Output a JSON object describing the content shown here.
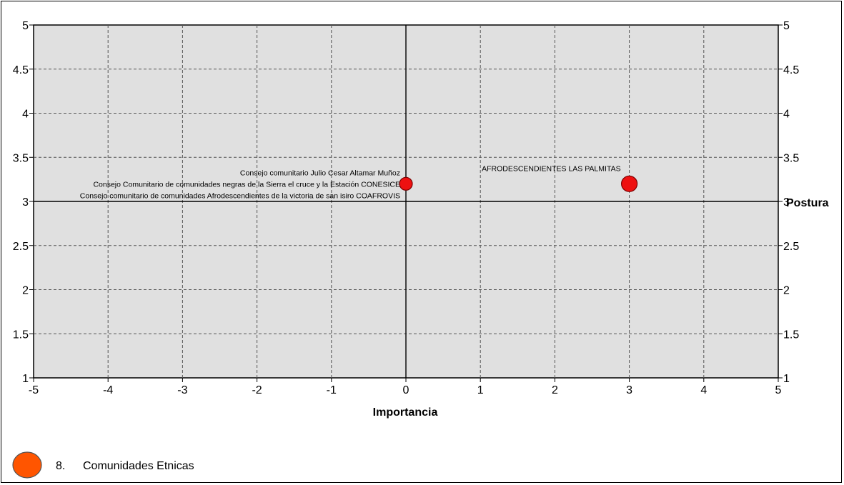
{
  "chart_data": {
    "type": "scatter",
    "xlabel": "Importancia",
    "ylabel": "Postura",
    "xlim": [
      -5,
      5
    ],
    "ylim": [
      1,
      5
    ],
    "x_ticks": [
      "-5",
      "-4",
      "-3",
      "-2",
      "-1",
      "0",
      "1",
      "2",
      "3",
      "4",
      "5"
    ],
    "y_ticks": [
      "1",
      "1.5",
      "2",
      "2.5",
      "3",
      "3.5",
      "4",
      "4.5",
      "5"
    ],
    "grid": true,
    "reference_lines": {
      "x": 0,
      "y": 3
    },
    "points": [
      {
        "x": 0,
        "y": 3.2,
        "labels": [
          "Consejo comunitario Julio Cesar Altamar Muñoz",
          "Consejo Comunitario de comunidades negras de la Sierra el cruce y la Estación CONESICE",
          "Consejo comunitario de comunidades Afrodescendientes de la victoria de san isiro COAFROVIS"
        ]
      },
      {
        "x": 3,
        "y": 3.2,
        "labels": [
          "AFRODESCENDIENTES LAS PALMITAS"
        ]
      }
    ],
    "colors": {
      "plot_bg": "#e0e0e0",
      "point": "#ee1111",
      "legend_marker": "#ff5500"
    }
  },
  "legend": {
    "number": "8.",
    "label": "Comunidades Etnicas"
  }
}
